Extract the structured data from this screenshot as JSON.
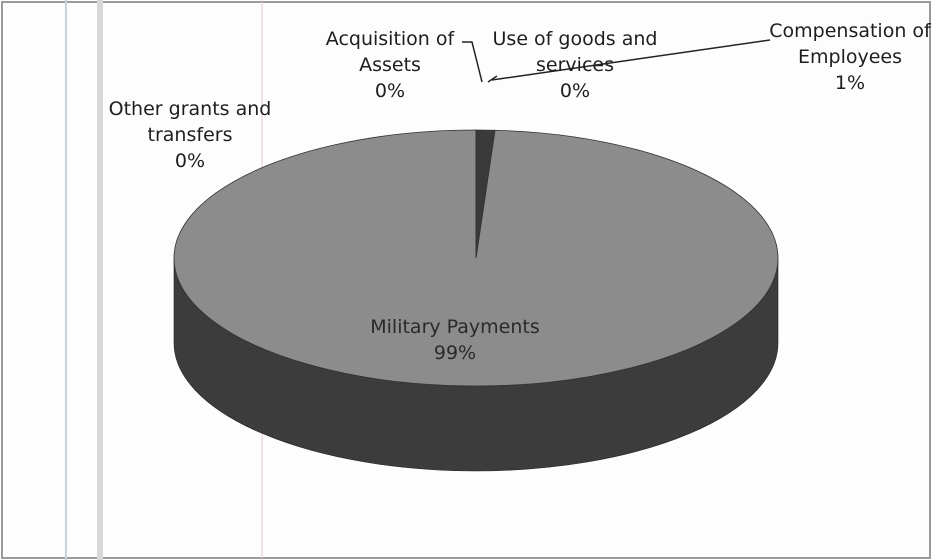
{
  "chart_data": {
    "type": "pie",
    "categories": [
      "Military Payments",
      "Compensation of Employees",
      "Use of goods and services",
      "Acquisition of Assets",
      "Other grants and transfers"
    ],
    "values": [
      99,
      1,
      0,
      0,
      0
    ],
    "value_labels": [
      "99%",
      "1%",
      "0%",
      "0%",
      "0%"
    ],
    "colors": [
      "#8c8c8c",
      "#3a3a3a",
      "#555555",
      "#666666",
      "#777777"
    ],
    "side_colors": [
      "#3c3c3c",
      "#1e1e1e",
      "#2a2a2a",
      "#333333",
      "#3a3a3a"
    ],
    "three_d": true
  }
}
